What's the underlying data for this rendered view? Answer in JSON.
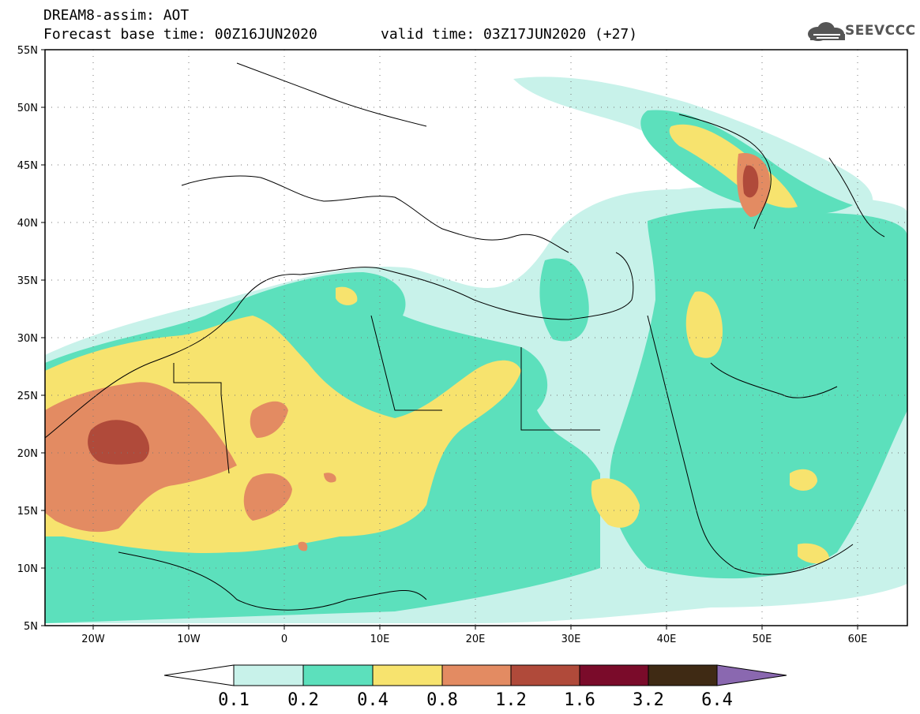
{
  "header": {
    "title": "DREAM8-assim: AOT",
    "base_time": "Forecast base time: 00Z16JUN2020",
    "valid_time": "valid time: 03Z17JUN2020 (+27)",
    "logo_text": "SEEVCCC"
  },
  "map": {
    "region": "North Africa, Middle East and Europe",
    "lat_labels": [
      "55N",
      "50N",
      "45N",
      "40N",
      "35N",
      "30N",
      "25N",
      "20N",
      "15N",
      "10N",
      "5N"
    ],
    "lon_labels": [
      "20W",
      "10W",
      "0",
      "10E",
      "20E",
      "30E",
      "40E",
      "50E",
      "60E"
    ],
    "lat_range": [
      5,
      55
    ],
    "lon_range": [
      -25,
      65
    ],
    "grid": "dotted"
  },
  "colorbar": {
    "labels": [
      "0.1",
      "0.2",
      "0.4",
      "0.8",
      "1.2",
      "1.6",
      "3.2",
      "6.4"
    ],
    "colors": [
      "#ffffff",
      "#c8f2ea",
      "#5ce0bc",
      "#f7e36e",
      "#e38b62",
      "#b04a3a",
      "#7a0b2a",
      "#3f2a14",
      "#8a68b0"
    ]
  },
  "colors": {
    "aot_0_1_0_2": "#c8f2ea",
    "aot_0_2_0_4": "#5ce0bc",
    "aot_0_4_0_8": "#f7e36e",
    "aot_0_8_1_2": "#e38b62",
    "aot_1_2_1_6": "#b04a3a"
  }
}
